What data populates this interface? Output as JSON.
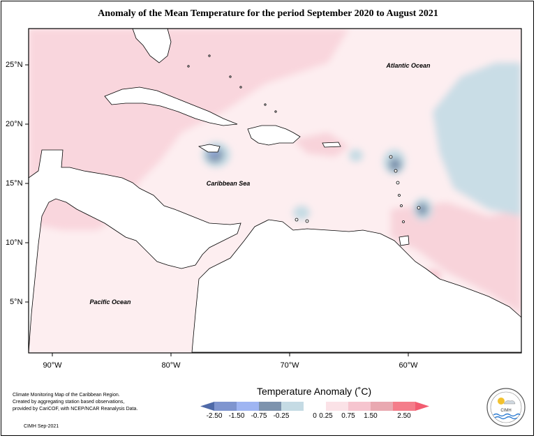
{
  "title": "Anomaly of the Mean Temperature for the period September 2020 to August 2021",
  "labels": {
    "atlantic": "Atlantic Ocean",
    "caribbean": "Caribbean Sea",
    "pacific": "Pacific Ocean"
  },
  "axes": {
    "lat_ticks": [
      "25°N",
      "20°N",
      "15°N",
      "10°N",
      "5°N"
    ],
    "lon_ticks": [
      "90°W",
      "80°W",
      "70°W",
      "60°W"
    ]
  },
  "legend": {
    "title": "Temperature Anomaly (˚C)",
    "ticks": [
      "-2.50",
      "-1.50",
      "-0.75",
      "-0.25",
      "0",
      "0.25",
      "0.75",
      "1.50",
      "2.50"
    ],
    "colors": [
      "#4f6aa8",
      "#7f95cf",
      "#9fb5f2",
      "#7d93ad",
      "#c5dbe4",
      "#ffffff",
      "#fbe2e7",
      "#f6c5cf",
      "#e9a9b1",
      "#f47d8a",
      "#f25c70"
    ]
  },
  "footnote": {
    "lines": [
      "Climate Monitoring Map of the Caribbean Region.",
      "Created by aggregating station based observations,",
      "provided by CariCOF, with NCEP/NCAR Reanalysis Data."
    ],
    "credit": "CIMH Sep-2021"
  },
  "logo": {
    "text": "CIMH"
  }
}
